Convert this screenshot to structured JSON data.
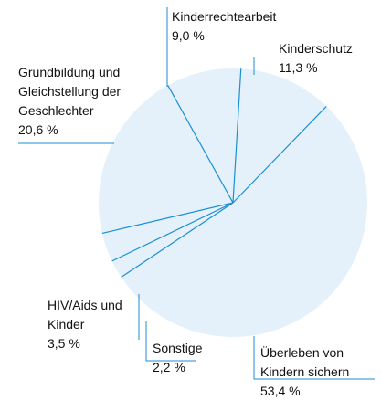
{
  "chart_data": {
    "type": "pie",
    "categories": [
      "Kinderrechtearbeit",
      "Kinderschutz",
      "Überleben von Kindern sichern",
      "Sonstige",
      "HIV/Aids und Kinder",
      "Grundbildung und Gleichstellung der Geschlechter"
    ],
    "values": [
      9.0,
      11.3,
      53.4,
      2.2,
      3.5,
      20.6
    ],
    "value_labels": [
      "9,0 %",
      "11,3 %",
      "53,4 %",
      "2,2 %",
      "3,5 %",
      "20,6 %"
    ],
    "color": "#e4f1fb",
    "line_color": "#1b8ed3"
  }
}
